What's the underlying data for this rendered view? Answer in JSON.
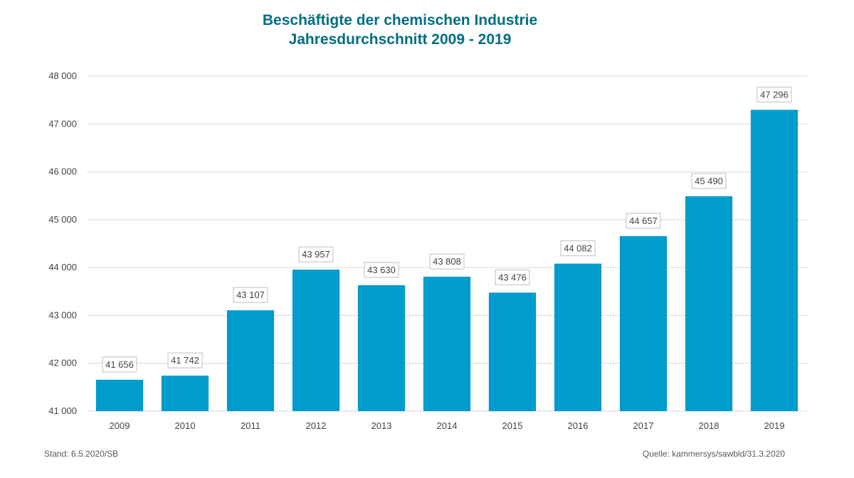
{
  "chart_data": {
    "type": "bar",
    "title": "Beschäftigte der chemischen Industrie",
    "subtitle": "Jahresdurchschnitt 2009 - 2019",
    "xlabel": "",
    "ylabel": "",
    "categories": [
      "2009",
      "2010",
      "2011",
      "2012",
      "2013",
      "2014",
      "2015",
      "2016",
      "2017",
      "2018",
      "2019"
    ],
    "values": [
      41656,
      41742,
      43107,
      43957,
      43630,
      43808,
      43476,
      44082,
      44657,
      45490,
      47296
    ],
    "value_labels": [
      "41 656",
      "41 742",
      "43 107",
      "43 957",
      "43 630",
      "43 808",
      "43 476",
      "44 082",
      "44 657",
      "45 490",
      "47 296"
    ],
    "ylim": [
      41000,
      48000
    ],
    "yticks": [
      41000,
      42000,
      43000,
      44000,
      45000,
      46000,
      47000,
      48000
    ],
    "ytick_labels": [
      "41 000",
      "42 000",
      "43 000",
      "44 000",
      "45 000",
      "46 000",
      "47 000",
      "48 000"
    ],
    "grid": true,
    "legend": "none",
    "colors": {
      "bar": "#009CCD",
      "title": "#006E82",
      "grid": "#D9D9D9",
      "label_border": "#BFBFBF"
    }
  },
  "footer": {
    "left": "Stand: 6.5.2020/SB",
    "right": "Quelle: kammersys/sawbld/31.3.2020"
  }
}
